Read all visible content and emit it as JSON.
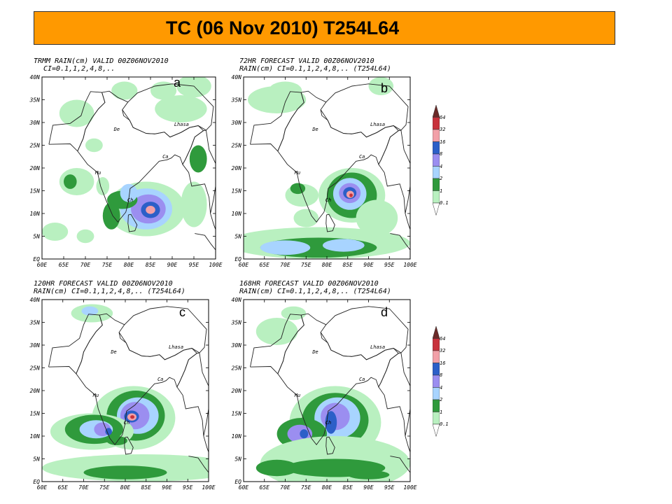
{
  "title": "TC  (06 Nov 2010) T254L64",
  "panels": [
    {
      "id": "a",
      "label": "a",
      "header_line1": "TRMM RAIN(cm) VALID 00Z06NOV2010",
      "header_line2": "CI=0.1,1,2,4,8,.."
    },
    {
      "id": "b",
      "label": "b",
      "header_line1": "72HR FORECAST VALID 00Z06NOV2010",
      "header_line2": "RAIN(cm) CI=0.1,1,2,4,8,.. (T254L64)"
    },
    {
      "id": "c",
      "label": "c",
      "header_line1": "120HR FORECAST VALID 00Z06NOV2010",
      "header_line2": "RAIN(cm) CI=0.1,1,2,4,8,.. (T254L64)"
    },
    {
      "id": "d",
      "label": "d",
      "header_line1": "168HR FORECAST VALID 00Z06NOV2010",
      "header_line2": "RAIN(cm) CI=0.1,1,2,4,8,.. (T254L64)"
    }
  ],
  "lat_ticks": [
    "EQ",
    "5N",
    "10N",
    "15N",
    "20N",
    "25N",
    "30N",
    "35N",
    "40N"
  ],
  "lon_ticks": [
    "60E",
    "65E",
    "70E",
    "75E",
    "80E",
    "85E",
    "90E",
    "95E",
    "100E"
  ],
  "cities": [
    "De",
    "Lhasa",
    "Ca",
    "Mu",
    "Ch"
  ],
  "legend": {
    "labels": [
      "0.1",
      "1",
      "2",
      "4",
      "8",
      "16",
      "32",
      "64"
    ],
    "colors": [
      "#ffffff",
      "#b9f0c0",
      "#2f9a3c",
      "#a8d4ff",
      "#9b8ef0",
      "#2c5fc8",
      "#f2a0a8",
      "#c8323c",
      "#6b2a28"
    ]
  }
}
